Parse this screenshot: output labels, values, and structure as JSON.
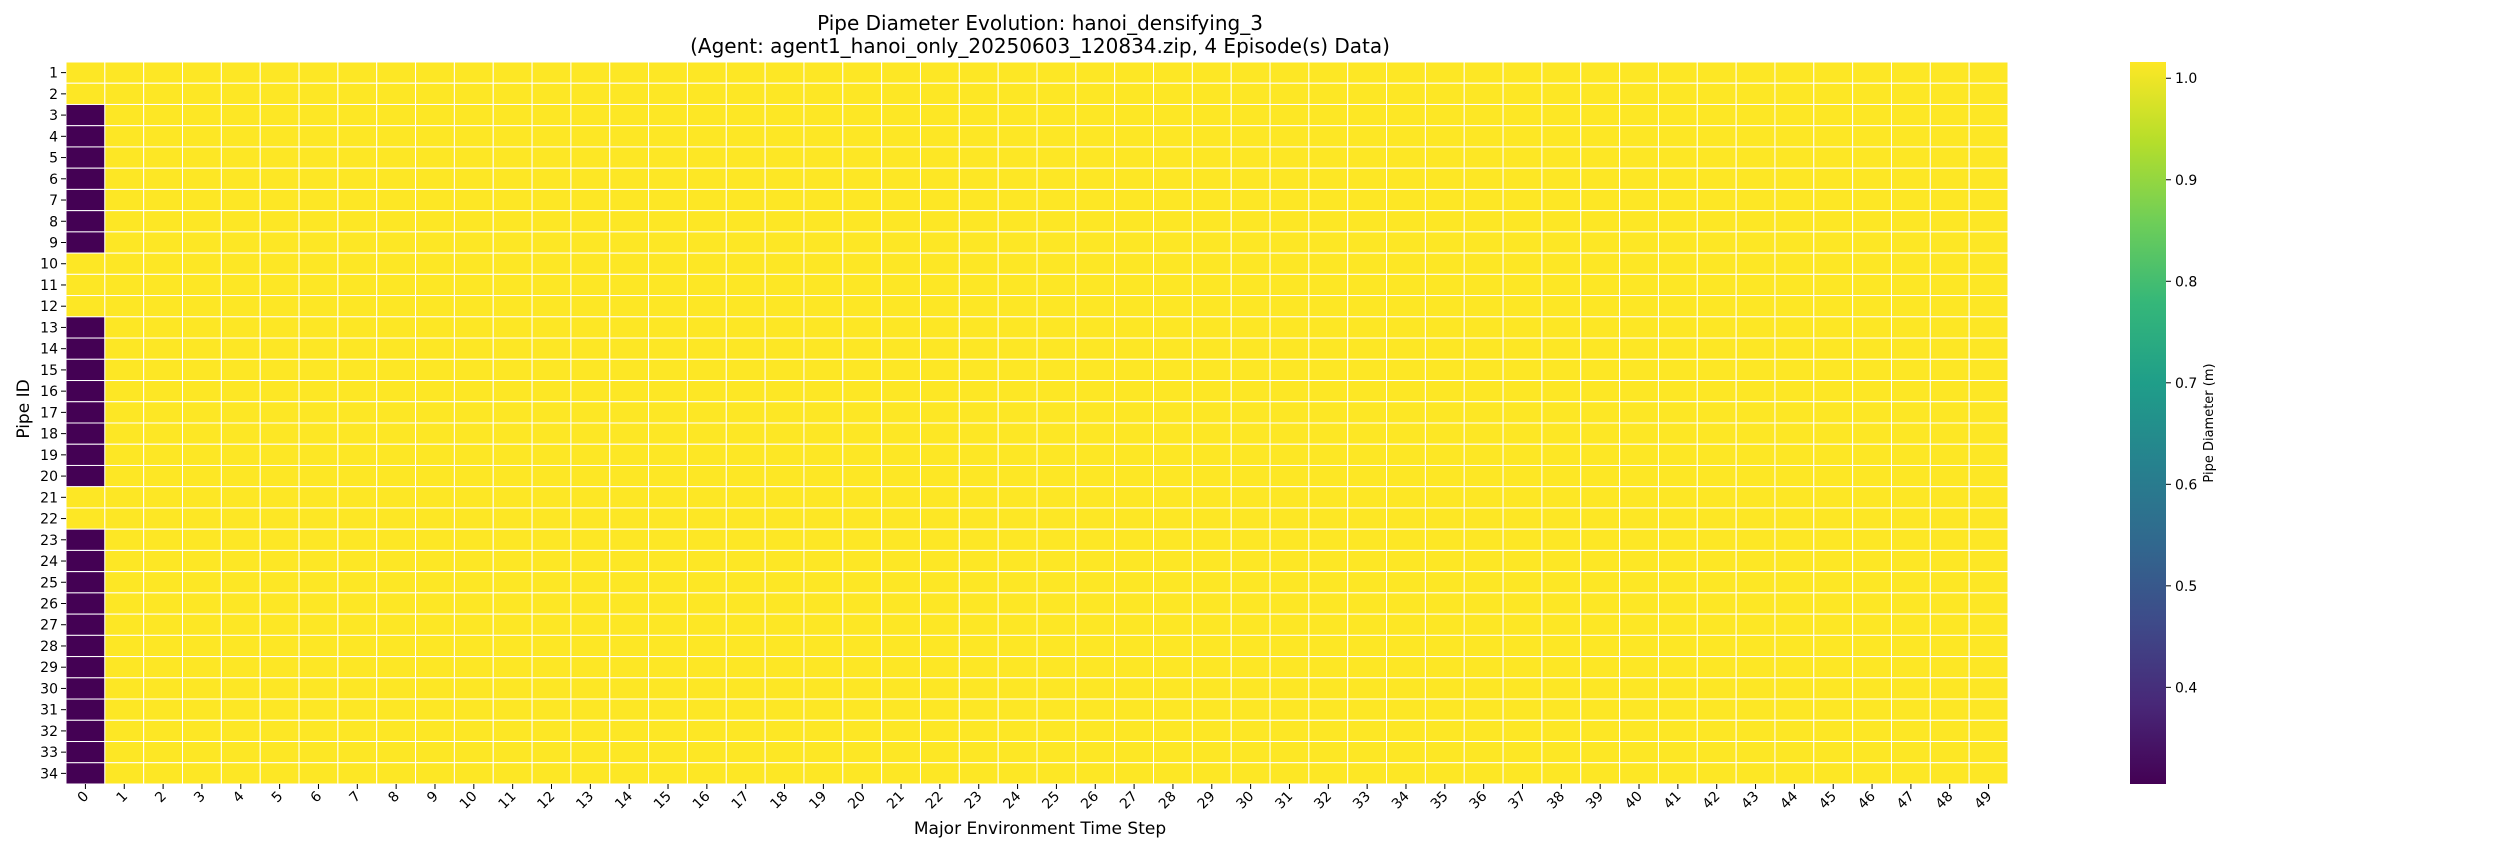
{
  "chart_data": {
    "type": "heatmap",
    "title": "Pipe Diameter Evolution: hanoi_densifying_3",
    "subtitle": "(Agent: agent1_hanoi_only_20250603_120834.zip, 4 Episode(s) Data)",
    "xlabel": "Major Environment Time Step",
    "ylabel": "Pipe ID",
    "x": [
      0,
      1,
      2,
      3,
      4,
      5,
      6,
      7,
      8,
      9,
      10,
      11,
      12,
      13,
      14,
      15,
      16,
      17,
      18,
      19,
      20,
      21,
      22,
      23,
      24,
      25,
      26,
      27,
      28,
      29,
      30,
      31,
      32,
      33,
      34,
      35,
      36,
      37,
      38,
      39,
      40,
      41,
      42,
      43,
      44,
      45,
      46,
      47,
      48,
      49
    ],
    "y": [
      1,
      2,
      3,
      4,
      5,
      6,
      7,
      8,
      9,
      10,
      11,
      12,
      13,
      14,
      15,
      16,
      17,
      18,
      19,
      20,
      21,
      22,
      23,
      24,
      25,
      26,
      27,
      28,
      29,
      30,
      31,
      32,
      33,
      34
    ],
    "step0_values": [
      1.016,
      1.016,
      0.3048,
      0.3048,
      0.3048,
      0.3048,
      0.3048,
      0.3048,
      0.3048,
      1.016,
      1.016,
      1.016,
      0.3048,
      0.3048,
      0.3048,
      0.3048,
      0.3048,
      0.3048,
      0.3048,
      0.3048,
      1.016,
      1.016,
      0.3048,
      0.3048,
      0.3048,
      0.3048,
      0.3048,
      0.3048,
      0.3048,
      0.3048,
      0.3048,
      0.3048,
      0.3048,
      0.3048
    ],
    "later_steps_value": 1.016,
    "colorbar": {
      "label": "Pipe Diameter (m)",
      "min": 0.3048,
      "max": 1.016,
      "ticks": [
        0.4,
        0.5,
        0.6,
        0.7,
        0.8,
        0.9,
        1.0
      ],
      "tick_labels": [
        "0.4",
        "0.5",
        "0.6",
        "0.7",
        "0.8",
        "0.9",
        "1.0"
      ],
      "colormap": "viridis"
    },
    "grid": "white cell borders",
    "legend": "colorbar at right"
  }
}
